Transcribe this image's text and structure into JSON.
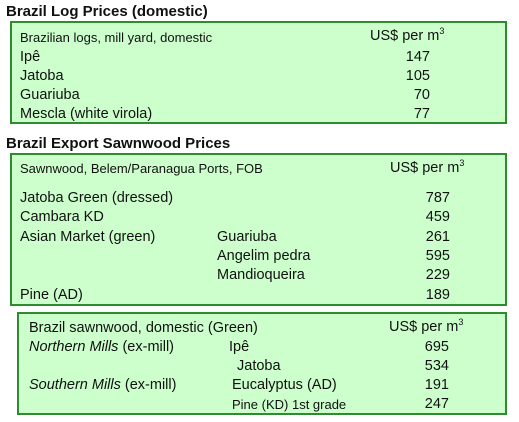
{
  "section1": {
    "title": "Brazil Log Prices (domestic)",
    "header_label": "Brazilian logs, mill yard, domestic",
    "unit": "US$ per m",
    "unit_sup": "3",
    "rows": [
      {
        "name": "Ipê",
        "value": "147"
      },
      {
        "name": "Jatoba",
        "value": "105"
      },
      {
        "name": "Guariuba",
        "value": "70"
      },
      {
        "name": "Mescla (white virola)",
        "value": "77"
      }
    ]
  },
  "section2": {
    "title": "Brazil Export Sawnwood Prices",
    "header_label": "Sawnwood, Belem/Paranagua Ports, FOB",
    "unit": "US$ per m",
    "unit_sup": "3",
    "rows": [
      {
        "name": "Jatoba Green (dressed)",
        "sub": "",
        "value": "787"
      },
      {
        "name": "Cambara KD",
        "sub": "",
        "value": "459"
      },
      {
        "name": "Asian Market (green)",
        "sub": "Guariuba",
        "value": "261"
      },
      {
        "name": "",
        "sub": "Angelim pedra",
        "value": "595"
      },
      {
        "name": "",
        "sub": "Mandioqueira",
        "value": "229"
      },
      {
        "name": "Pine (AD)",
        "sub": "",
        "value": "189"
      }
    ]
  },
  "section3": {
    "header_label": "Brazil sawnwood, domestic (Green)",
    "unit": "US$ per m",
    "unit_sup": "3",
    "rows": [
      {
        "name": "Northern Mills",
        "name_suffix": " (ex-mill)",
        "sub": "Ipê",
        "value": "695"
      },
      {
        "name": "",
        "name_suffix": "",
        "sub": "Jatoba",
        "value": "534"
      },
      {
        "name": "Southern Mills",
        "name_suffix": " (ex-mill)",
        "sub": "Eucalyptus (AD)",
        "value": "191"
      },
      {
        "name": "",
        "name_suffix": "",
        "sub": "Pine (KD) 1st grade",
        "value": "247"
      }
    ]
  }
}
